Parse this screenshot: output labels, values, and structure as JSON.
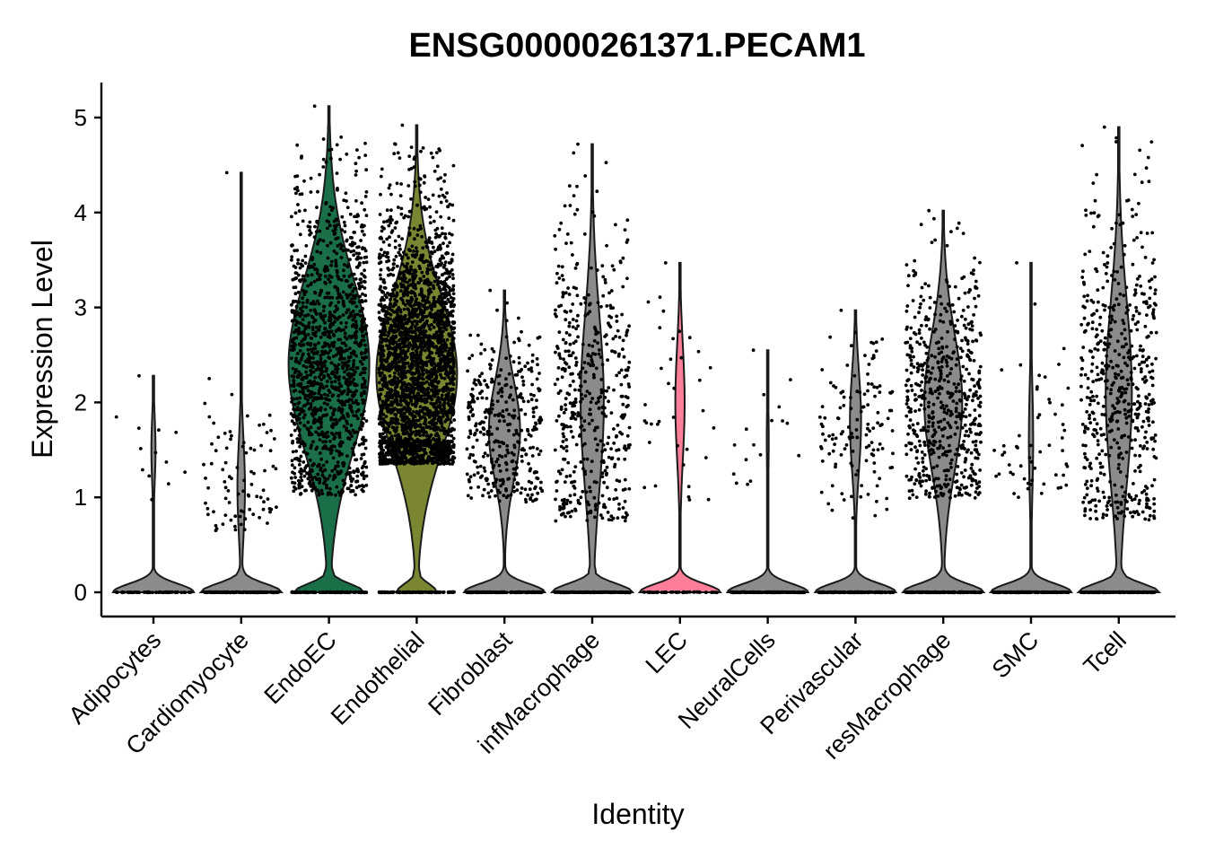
{
  "chart_data": {
    "type": "violin",
    "title": "ENSG00000261371.PECAM1",
    "xlabel": "Identity",
    "ylabel": "Expression Level",
    "ylim": [
      -0.25,
      5.4
    ],
    "yticks": [
      "0",
      "1",
      "2",
      "3",
      "4",
      "5"
    ],
    "legend": "none",
    "categories": [
      "Adipocytes",
      "Cardiomyocyte",
      "EndoEC",
      "Endothelial",
      "Fibroblast",
      "infMacrophage",
      "LEC",
      "NeuralCells",
      "Perivascular",
      "resMacrophage",
      "SMC",
      "Tcell"
    ],
    "series": [
      {
        "name": "Adipocytes",
        "color": "#8b8b8b",
        "min": 0,
        "max": 2.28,
        "zeroCount": 60,
        "expressed": {
          "count": 12,
          "low": 0.9,
          "high": 1.95,
          "center": 1.5
        }
      },
      {
        "name": "Cardiomyocyte",
        "color": "#8b8b8b",
        "min": 0,
        "max": 4.42,
        "zeroCount": 160,
        "expressed": {
          "count": 85,
          "low": 0.65,
          "high": 2.8,
          "center": 1.1
        }
      },
      {
        "name": "EndoEC",
        "color": "#1a6e48",
        "min": 0,
        "max": 5.12,
        "zeroCount": 120,
        "expressed": {
          "count": 1400,
          "low": 1.02,
          "high": 4.82,
          "center": 2.4
        }
      },
      {
        "name": "Endothelial",
        "color": "#7a8632",
        "min": 0,
        "max": 4.92,
        "zeroCount": 140,
        "expressed": {
          "count": 2600,
          "low": 1.35,
          "high": 4.85,
          "center": 2.3
        }
      },
      {
        "name": "Fibroblast",
        "color": "#8b8b8b",
        "min": 0,
        "max": 3.18,
        "zeroCount": 160,
        "expressed": {
          "count": 360,
          "low": 0.95,
          "high": 3.15,
          "center": 1.7
        }
      },
      {
        "name": "infMacrophage",
        "color": "#8b8b8b",
        "min": 0,
        "max": 4.72,
        "zeroCount": 160,
        "expressed": {
          "count": 480,
          "low": 0.75,
          "high": 4.7,
          "center": 2.0
        }
      },
      {
        "name": "LEC",
        "color": "#fc7e98",
        "min": 0,
        "max": 3.47,
        "zeroCount": 45,
        "expressed": {
          "count": 35,
          "low": 0.9,
          "high": 3.45,
          "center": 2.0
        }
      },
      {
        "name": "NeuralCells",
        "color": "#8b8b8b",
        "min": 0,
        "max": 2.55,
        "zeroCount": 150,
        "expressed": {
          "count": 16,
          "low": 0.82,
          "high": 2.45,
          "center": 1.6
        }
      },
      {
        "name": "Perivascular",
        "color": "#8b8b8b",
        "min": 0,
        "max": 2.97,
        "zeroCount": 160,
        "expressed": {
          "count": 130,
          "low": 0.72,
          "high": 2.95,
          "center": 1.8
        }
      },
      {
        "name": "resMacrophage",
        "color": "#8b8b8b",
        "min": 0,
        "max": 4.02,
        "zeroCount": 160,
        "expressed": {
          "count": 600,
          "low": 0.98,
          "high": 4.0,
          "center": 2.0
        }
      },
      {
        "name": "SMC",
        "color": "#8b8b8b",
        "min": 0,
        "max": 3.47,
        "zeroCount": 160,
        "expressed": {
          "count": 55,
          "low": 1.0,
          "high": 3.45,
          "center": 1.6
        }
      },
      {
        "name": "Tcell",
        "color": "#8b8b8b",
        "min": 0,
        "max": 4.9,
        "zeroCount": 160,
        "expressed": {
          "count": 560,
          "low": 0.76,
          "high": 4.85,
          "center": 2.1
        }
      }
    ]
  }
}
